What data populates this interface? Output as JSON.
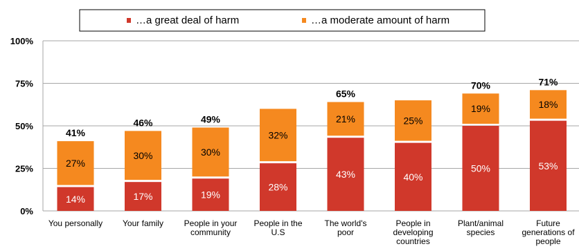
{
  "colors": {
    "great_deal": "#d0382b",
    "moderate": "#f5891f",
    "grid": "#a6a6a6"
  },
  "chart_data": {
    "type": "bar",
    "stacked": true,
    "categories": [
      "You personally",
      "Your family",
      "People in your community",
      "People in the U.S",
      "The world's poor",
      "People in developing countries",
      "Plant/animal species",
      "Future generations of people"
    ],
    "category_lines": [
      [
        "You personally"
      ],
      [
        "Your family"
      ],
      [
        "People in your",
        "community"
      ],
      [
        "People in the",
        "U.S"
      ],
      [
        "The world's",
        "poor"
      ],
      [
        "People in",
        "developing",
        "countries"
      ],
      [
        "Plant/animal",
        "species"
      ],
      [
        "Future",
        "generations of",
        "people"
      ]
    ],
    "series": [
      {
        "name": "…a great deal of harm",
        "values": [
          14,
          17,
          19,
          28,
          43,
          40,
          50,
          53
        ],
        "labels": [
          "14%",
          "17%",
          "19%",
          "28%",
          "43%",
          "40%",
          "50%",
          "53%"
        ]
      },
      {
        "name": "…a moderate amount of harm",
        "values": [
          27,
          30,
          30,
          32,
          21,
          25,
          19,
          18
        ],
        "labels": [
          "27%",
          "30%",
          "30%",
          "32%",
          "21%",
          "25%",
          "19%",
          "18%"
        ]
      }
    ],
    "totals": [
      "41%",
      "46%",
      "49%",
      "",
      "65%",
      "",
      "70%",
      "71%"
    ],
    "ylim": [
      0,
      100
    ],
    "yticks": [
      0,
      25,
      50,
      75,
      100
    ],
    "ytick_labels": [
      "0%",
      "25%",
      "50%",
      "75%",
      "100%"
    ],
    "grid": true,
    "legend_position": "top"
  }
}
